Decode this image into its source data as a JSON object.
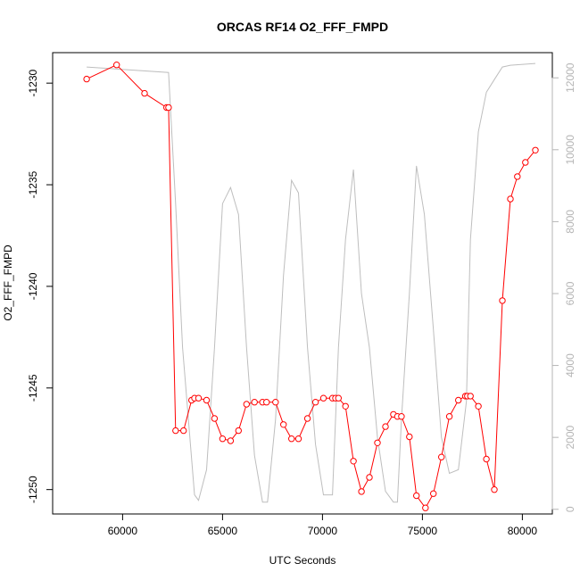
{
  "chart_data": {
    "type": "line",
    "title": "ORCAS RF14 O2_FFF_FMPD",
    "xlabel": "UTC Seconds",
    "ylabel": "O2_FFF_FMPD",
    "y2label": "",
    "xlim": [
      56500,
      81500
    ],
    "ylim": [
      -1251.2,
      -1228.5
    ],
    "y2lim": [
      -130,
      12700
    ],
    "xticks": [
      "60000",
      "65000",
      "70000",
      "75000",
      "80000"
    ],
    "yticks": [
      "-1230",
      "-1235",
      "-1240",
      "-1245",
      "-1250"
    ],
    "y2ticks": [
      "0",
      "2000",
      "4000",
      "6000",
      "8000",
      "10000",
      "12000"
    ],
    "grid": false,
    "legend": "none",
    "series": [
      {
        "role": "primary",
        "color": "#ff0000",
        "marker": "open-circle",
        "x": [
          58200,
          59700,
          61100,
          62200,
          62300,
          62650,
          63050,
          63450,
          63600,
          63800,
          64200,
          64600,
          65000,
          65400,
          65800,
          66200,
          66600,
          67000,
          67200,
          67650,
          68050,
          68450,
          68800,
          69250,
          69650,
          70050,
          70500,
          70650,
          70800,
          71150,
          71550,
          71950,
          72350,
          72750,
          73150,
          73550,
          73750,
          73950,
          74350,
          74700,
          75150,
          75550,
          75950,
          76350,
          76800,
          77150,
          77250,
          77400,
          77800,
          78200,
          78600,
          79000,
          79400,
          79750,
          80150,
          80650
        ],
        "y": [
          -1229.8,
          -1229.1,
          -1230.5,
          -1231.2,
          -1231.2,
          -1247.1,
          -1247.1,
          -1245.6,
          -1245.5,
          -1245.5,
          -1245.6,
          -1246.5,
          -1247.5,
          -1247.6,
          -1247.1,
          -1245.8,
          -1245.7,
          -1245.7,
          -1245.7,
          -1245.7,
          -1246.8,
          -1247.5,
          -1247.5,
          -1246.5,
          -1245.7,
          -1245.5,
          -1245.5,
          -1245.5,
          -1245.5,
          -1245.9,
          -1248.6,
          -1250.1,
          -1249.4,
          -1247.7,
          -1246.9,
          -1246.3,
          -1246.4,
          -1246.4,
          -1247.4,
          -1250.3,
          -1250.9,
          -1250.2,
          -1248.4,
          -1246.4,
          -1245.6,
          -1245.4,
          -1245.4,
          -1245.4,
          -1245.9,
          -1248.5,
          -1250.0,
          -1240.7,
          -1235.7,
          -1234.6,
          -1233.9,
          -1233.3
        ]
      },
      {
        "role": "secondary",
        "color": "#bebebe",
        "marker": "none",
        "x": [
          58200,
          62300,
          62650,
          63000,
          63600,
          63800,
          64200,
          64600,
          65000,
          65400,
          65800,
          66200,
          66600,
          67000,
          67250,
          67650,
          68050,
          68450,
          68800,
          69250,
          69650,
          70050,
          70500,
          70800,
          71150,
          71550,
          71950,
          72350,
          72750,
          73150,
          73550,
          73750,
          73950,
          74350,
          74700,
          75100,
          75550,
          75950,
          76350,
          76800,
          77200,
          77400,
          77800,
          78200,
          78600,
          79000,
          79400,
          80650
        ],
        "y": [
          12300,
          12150,
          8500,
          4500,
          400,
          250,
          1100,
          4500,
          8500,
          8950,
          8200,
          4500,
          1500,
          200,
          200,
          2500,
          6500,
          9150,
          8800,
          4500,
          1800,
          400,
          400,
          4500,
          7500,
          9450,
          6000,
          4500,
          2000,
          500,
          200,
          200,
          2500,
          6000,
          9550,
          8200,
          5000,
          2000,
          1000,
          1100,
          3000,
          7500,
          10500,
          11600,
          11950,
          12300,
          12350,
          12400
        ]
      }
    ]
  }
}
